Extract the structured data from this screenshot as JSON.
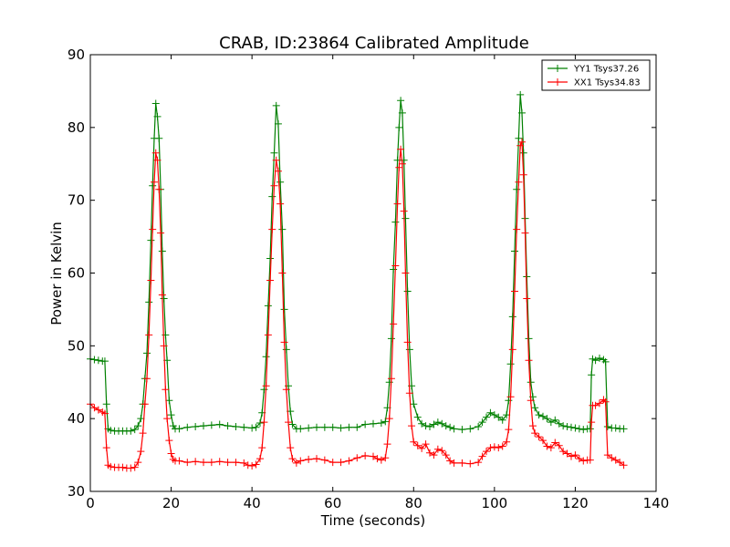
{
  "chart_data": {
    "type": "line",
    "title": "CRAB, ID:23864 Calibrated Amplitude",
    "xlabel": "Time (seconds)",
    "ylabel": "Power in Kelvin",
    "xlim": [
      0,
      140
    ],
    "ylim": [
      30,
      90
    ],
    "xticks": [
      "0",
      "20",
      "40",
      "60",
      "80",
      "100",
      "120",
      "140"
    ],
    "yticks": [
      "30",
      "40",
      "50",
      "60",
      "70",
      "80",
      "90"
    ],
    "grid": false,
    "legend_position": "top-right",
    "series": [
      {
        "name": "YY1 Tsys37.26",
        "color": "#008000",
        "marker": "plus",
        "points": [
          [
            0,
            48.2
          ],
          [
            1,
            48.1
          ],
          [
            2,
            48.0
          ],
          [
            3,
            47.9
          ],
          [
            3.6,
            47.9
          ],
          [
            4,
            42.0
          ],
          [
            4.4,
            38.6
          ],
          [
            5,
            38.4
          ],
          [
            6,
            38.3
          ],
          [
            7,
            38.3
          ],
          [
            8,
            38.3
          ],
          [
            9,
            38.3
          ],
          [
            10,
            38.3
          ],
          [
            11,
            38.5
          ],
          [
            11.8,
            39.0
          ],
          [
            12.5,
            40.0
          ],
          [
            13,
            42.0
          ],
          [
            13.5,
            45.5
          ],
          [
            14,
            49.0
          ],
          [
            14.5,
            56.0
          ],
          [
            15,
            64.5
          ],
          [
            15.4,
            72.0
          ],
          [
            15.8,
            78.5
          ],
          [
            16.2,
            83.3
          ],
          [
            16.6,
            81.5
          ],
          [
            17,
            78.5
          ],
          [
            17.4,
            71.5
          ],
          [
            17.8,
            63.0
          ],
          [
            18.2,
            56.5
          ],
          [
            18.6,
            51.5
          ],
          [
            19,
            48.0
          ],
          [
            19.5,
            42.5
          ],
          [
            20,
            40.5
          ],
          [
            20.5,
            39.0
          ],
          [
            21,
            38.6
          ],
          [
            22,
            38.6
          ],
          [
            24,
            38.8
          ],
          [
            26,
            38.9
          ],
          [
            28,
            39.0
          ],
          [
            30,
            39.1
          ],
          [
            32,
            39.2
          ],
          [
            34,
            39.0
          ],
          [
            36,
            38.9
          ],
          [
            38,
            38.8
          ],
          [
            40,
            38.7
          ],
          [
            41,
            38.8
          ],
          [
            42,
            39.4
          ],
          [
            42.5,
            40.8
          ],
          [
            43,
            44.0
          ],
          [
            43.5,
            48.5
          ],
          [
            44,
            55.5
          ],
          [
            44.5,
            62.0
          ],
          [
            45,
            70.5
          ],
          [
            45.5,
            76.5
          ],
          [
            46,
            83.0
          ],
          [
            46.5,
            80.5
          ],
          [
            47,
            72.5
          ],
          [
            47.5,
            66.0
          ],
          [
            48,
            55.0
          ],
          [
            48.5,
            49.5
          ],
          [
            49,
            44.5
          ],
          [
            49.5,
            41.0
          ],
          [
            50,
            39.2
          ],
          [
            51,
            38.6
          ],
          [
            52,
            38.6
          ],
          [
            54,
            38.7
          ],
          [
            56,
            38.8
          ],
          [
            58,
            38.8
          ],
          [
            60,
            38.8
          ],
          [
            62,
            38.7
          ],
          [
            64,
            38.8
          ],
          [
            66,
            38.8
          ],
          [
            68,
            39.2
          ],
          [
            70,
            39.3
          ],
          [
            72,
            39.4
          ],
          [
            73,
            39.6
          ],
          [
            73.5,
            41.5
          ],
          [
            74,
            45.0
          ],
          [
            74.5,
            51.0
          ],
          [
            75,
            60.5
          ],
          [
            75.5,
            67.0
          ],
          [
            76,
            75.5
          ],
          [
            76.4,
            80.0
          ],
          [
            76.8,
            83.7
          ],
          [
            77.2,
            82.0
          ],
          [
            77.6,
            75.5
          ],
          [
            78,
            67.5
          ],
          [
            78.5,
            57.5
          ],
          [
            79,
            49.5
          ],
          [
            79.5,
            44.5
          ],
          [
            80,
            42.0
          ],
          [
            81,
            40.2
          ],
          [
            82,
            39.3
          ],
          [
            83,
            39.0
          ],
          [
            84,
            38.9
          ],
          [
            85,
            39.2
          ],
          [
            86,
            39.5
          ],
          [
            87,
            39.3
          ],
          [
            88,
            39.0
          ],
          [
            89,
            38.8
          ],
          [
            90,
            38.6
          ],
          [
            92,
            38.5
          ],
          [
            94,
            38.6
          ],
          [
            96,
            38.9
          ],
          [
            97,
            39.5
          ],
          [
            98,
            40.2
          ],
          [
            99,
            40.8
          ],
          [
            100,
            40.5
          ],
          [
            101,
            40.2
          ],
          [
            102,
            39.8
          ],
          [
            103,
            40.5
          ],
          [
            103.5,
            42.5
          ],
          [
            104,
            47.5
          ],
          [
            104.5,
            54.0
          ],
          [
            105,
            63.0
          ],
          [
            105.5,
            71.5
          ],
          [
            106,
            78.5
          ],
          [
            106.4,
            84.5
          ],
          [
            106.8,
            82.0
          ],
          [
            107.2,
            76.5
          ],
          [
            107.6,
            67.5
          ],
          [
            108,
            59.5
          ],
          [
            108.5,
            51.0
          ],
          [
            109,
            45.0
          ],
          [
            109.5,
            43.0
          ],
          [
            110,
            41.5
          ],
          [
            111,
            40.5
          ],
          [
            112,
            40.3
          ],
          [
            113,
            40.0
          ],
          [
            114,
            39.5
          ],
          [
            115,
            39.8
          ],
          [
            116,
            39.3
          ],
          [
            117,
            39.0
          ],
          [
            118,
            38.9
          ],
          [
            119,
            38.8
          ],
          [
            120,
            38.7
          ],
          [
            121,
            38.6
          ],
          [
            122,
            38.5
          ],
          [
            123,
            38.6
          ],
          [
            123.7,
            38.6
          ],
          [
            124,
            46.0
          ],
          [
            124.3,
            48.2
          ],
          [
            125,
            48.0
          ],
          [
            126,
            48.3
          ],
          [
            127,
            48.1
          ],
          [
            127.5,
            47.8
          ],
          [
            128,
            38.9
          ],
          [
            129,
            38.7
          ],
          [
            130,
            38.7
          ],
          [
            131,
            38.6
          ],
          [
            132,
            38.6
          ]
        ]
      },
      {
        "name": "XX1 Tsys34.83",
        "color": "#ff0000",
        "marker": "plus",
        "points": [
          [
            0,
            42.0
          ],
          [
            1,
            41.5
          ],
          [
            2,
            41.2
          ],
          [
            3,
            40.9
          ],
          [
            3.6,
            40.7
          ],
          [
            4,
            36.0
          ],
          [
            4.4,
            33.6
          ],
          [
            5,
            33.4
          ],
          [
            6,
            33.3
          ],
          [
            7,
            33.3
          ],
          [
            8,
            33.3
          ],
          [
            9,
            33.2
          ],
          [
            10,
            33.2
          ],
          [
            11,
            33.3
          ],
          [
            11.8,
            34.0
          ],
          [
            12.5,
            35.5
          ],
          [
            13,
            38.0
          ],
          [
            13.5,
            42.0
          ],
          [
            14,
            45.5
          ],
          [
            14.5,
            51.5
          ],
          [
            15,
            59.0
          ],
          [
            15.4,
            66.0
          ],
          [
            15.8,
            72.5
          ],
          [
            16.2,
            76.5
          ],
          [
            16.6,
            75.5
          ],
          [
            17,
            71.5
          ],
          [
            17.4,
            65.5
          ],
          [
            17.8,
            57.0
          ],
          [
            18.2,
            50.0
          ],
          [
            18.6,
            44.0
          ],
          [
            19,
            40.0
          ],
          [
            19.5,
            37.0
          ],
          [
            20,
            35.2
          ],
          [
            20.5,
            34.4
          ],
          [
            21,
            34.2
          ],
          [
            22,
            34.2
          ],
          [
            24,
            34.0
          ],
          [
            26,
            34.1
          ],
          [
            28,
            34.0
          ],
          [
            30,
            34.0
          ],
          [
            32,
            34.1
          ],
          [
            34,
            34.0
          ],
          [
            36,
            34.0
          ],
          [
            38,
            33.9
          ],
          [
            39,
            33.6
          ],
          [
            40,
            33.5
          ],
          [
            41,
            33.7
          ],
          [
            42,
            34.5
          ],
          [
            42.5,
            36.0
          ],
          [
            43,
            39.5
          ],
          [
            43.5,
            44.5
          ],
          [
            44,
            51.5
          ],
          [
            44.5,
            59.0
          ],
          [
            45,
            66.0
          ],
          [
            45.5,
            72.0
          ],
          [
            46,
            75.5
          ],
          [
            46.5,
            74.0
          ],
          [
            47,
            69.5
          ],
          [
            47.5,
            60.0
          ],
          [
            48,
            50.5
          ],
          [
            48.5,
            44.0
          ],
          [
            49,
            39.5
          ],
          [
            49.5,
            36.0
          ],
          [
            50,
            34.5
          ],
          [
            51,
            33.9
          ],
          [
            52,
            34.2
          ],
          [
            54,
            34.4
          ],
          [
            56,
            34.5
          ],
          [
            58,
            34.3
          ],
          [
            60,
            34.0
          ],
          [
            62,
            34.0
          ],
          [
            64,
            34.2
          ],
          [
            66,
            34.6
          ],
          [
            68,
            34.9
          ],
          [
            70,
            34.8
          ],
          [
            71,
            34.5
          ],
          [
            72,
            34.3
          ],
          [
            73,
            34.6
          ],
          [
            73.5,
            36.5
          ],
          [
            74,
            40.0
          ],
          [
            74.5,
            45.5
          ],
          [
            75,
            53.0
          ],
          [
            75.5,
            61.0
          ],
          [
            76,
            69.5
          ],
          [
            76.4,
            74.5
          ],
          [
            76.8,
            77.0
          ],
          [
            77.2,
            75.0
          ],
          [
            77.6,
            68.5
          ],
          [
            78,
            60.0
          ],
          [
            78.5,
            50.5
          ],
          [
            79,
            43.5
          ],
          [
            79.5,
            39.0
          ],
          [
            80,
            36.8
          ],
          [
            81,
            36.3
          ],
          [
            82,
            35.9
          ],
          [
            83,
            36.5
          ],
          [
            84,
            35.3
          ],
          [
            85,
            35.0
          ],
          [
            86,
            35.8
          ],
          [
            87,
            35.6
          ],
          [
            88,
            35.0
          ],
          [
            89,
            34.2
          ],
          [
            90,
            33.9
          ],
          [
            92,
            33.9
          ],
          [
            94,
            33.8
          ],
          [
            96,
            34.0
          ],
          [
            97,
            34.8
          ],
          [
            98,
            35.5
          ],
          [
            99,
            36.0
          ],
          [
            100,
            36.1
          ],
          [
            101,
            36.0
          ],
          [
            102,
            36.2
          ],
          [
            103,
            36.8
          ],
          [
            103.5,
            38.5
          ],
          [
            104,
            43.0
          ],
          [
            104.5,
            49.5
          ],
          [
            105,
            57.5
          ],
          [
            105.5,
            66.0
          ],
          [
            106,
            72.5
          ],
          [
            106.4,
            77.5
          ],
          [
            106.8,
            78.0
          ],
          [
            107.2,
            73.5
          ],
          [
            107.6,
            65.5
          ],
          [
            108,
            56.5
          ],
          [
            108.5,
            48.0
          ],
          [
            109,
            42.5
          ],
          [
            109.5,
            39.0
          ],
          [
            110,
            38.0
          ],
          [
            111,
            37.5
          ],
          [
            112,
            37.0
          ],
          [
            113,
            36.2
          ],
          [
            114,
            36.0
          ],
          [
            115,
            36.7
          ],
          [
            116,
            36.3
          ],
          [
            117,
            35.5
          ],
          [
            118,
            35.2
          ],
          [
            119,
            34.8
          ],
          [
            120,
            35.0
          ],
          [
            121,
            34.5
          ],
          [
            122,
            34.2
          ],
          [
            123,
            34.3
          ],
          [
            123.7,
            34.3
          ],
          [
            124,
            39.5
          ],
          [
            124.3,
            41.8
          ],
          [
            125,
            41.8
          ],
          [
            126,
            42.1
          ],
          [
            127,
            42.6
          ],
          [
            127.5,
            42.3
          ],
          [
            128,
            35.0
          ],
          [
            129,
            34.6
          ],
          [
            130,
            34.3
          ],
          [
            131,
            34.0
          ],
          [
            132,
            33.6
          ]
        ]
      }
    ]
  }
}
